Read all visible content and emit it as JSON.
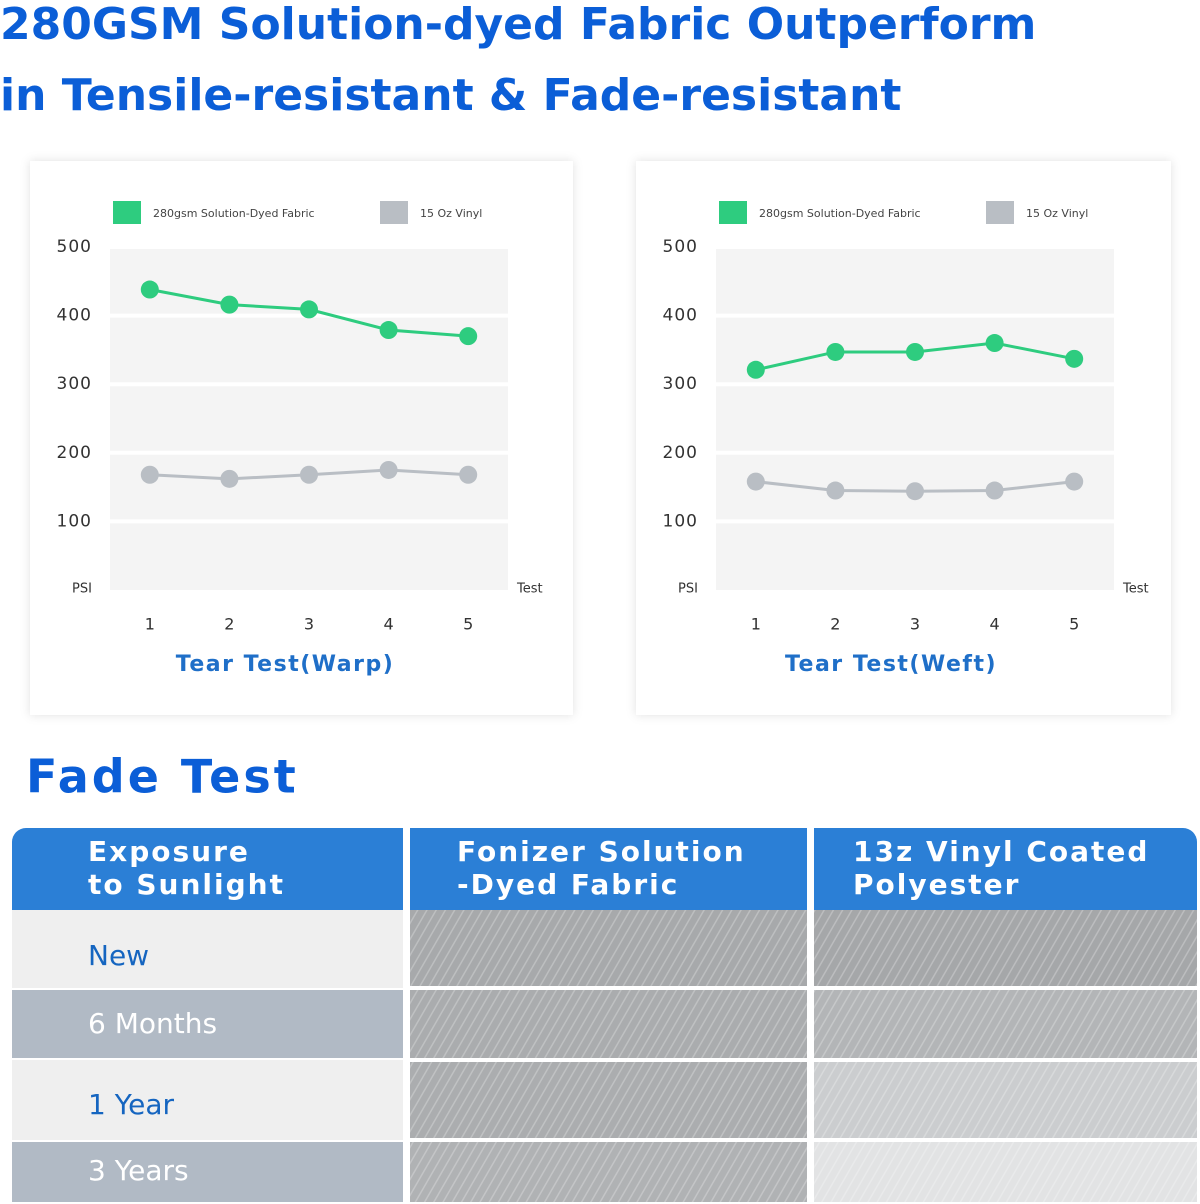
{
  "header": {
    "title_lines": [
      "280GSM Solution-dyed Fabric Outperform",
      "in Tensile-resistant & Fade-resistant"
    ]
  },
  "chart_data": [
    {
      "type": "line",
      "title": "Tear Test(Warp)",
      "x_label": "Test",
      "y_label": "PSI",
      "categories": [
        "1",
        "2",
        "3",
        "4",
        "5"
      ],
      "series": [
        {
          "name": "280gsm Solution-Dyed Fabric",
          "color": "#2ecc7f",
          "values": [
            438,
            416,
            409,
            379,
            370
          ]
        },
        {
          "name": "15 Oz Vinyl",
          "color": "#b9bec4",
          "values": [
            168,
            162,
            168,
            175,
            168
          ]
        }
      ],
      "ylim": [
        0,
        500
      ],
      "yticks": [
        100,
        200,
        300,
        400,
        500
      ],
      "grid": true
    },
    {
      "type": "line",
      "title": "Tear Test(Weft)",
      "x_label": "Test",
      "y_label": "PSI",
      "categories": [
        "1",
        "2",
        "3",
        "4",
        "5"
      ],
      "series": [
        {
          "name": "280gsm Solution-Dyed Fabric",
          "color": "#2ecc7f",
          "values": [
            321,
            347,
            347,
            360,
            337
          ]
        },
        {
          "name": "15 Oz Vinyl",
          "color": "#b9bec4",
          "values": [
            158,
            145,
            144,
            145,
            158
          ]
        }
      ],
      "ylim": [
        0,
        500
      ],
      "yticks": [
        100,
        200,
        300,
        400,
        500
      ],
      "grid": true
    }
  ],
  "fade_test": {
    "title": "Fade Test",
    "columns": [
      [
        "Exposure",
        "to Sunlight"
      ],
      [
        "Fonizer Solution",
        "-Dyed Fabric"
      ],
      [
        "13z Vinyl Coated",
        "Polyester"
      ]
    ],
    "rows": [
      "New",
      "6 Months",
      "1 Year",
      "3 Years"
    ]
  }
}
